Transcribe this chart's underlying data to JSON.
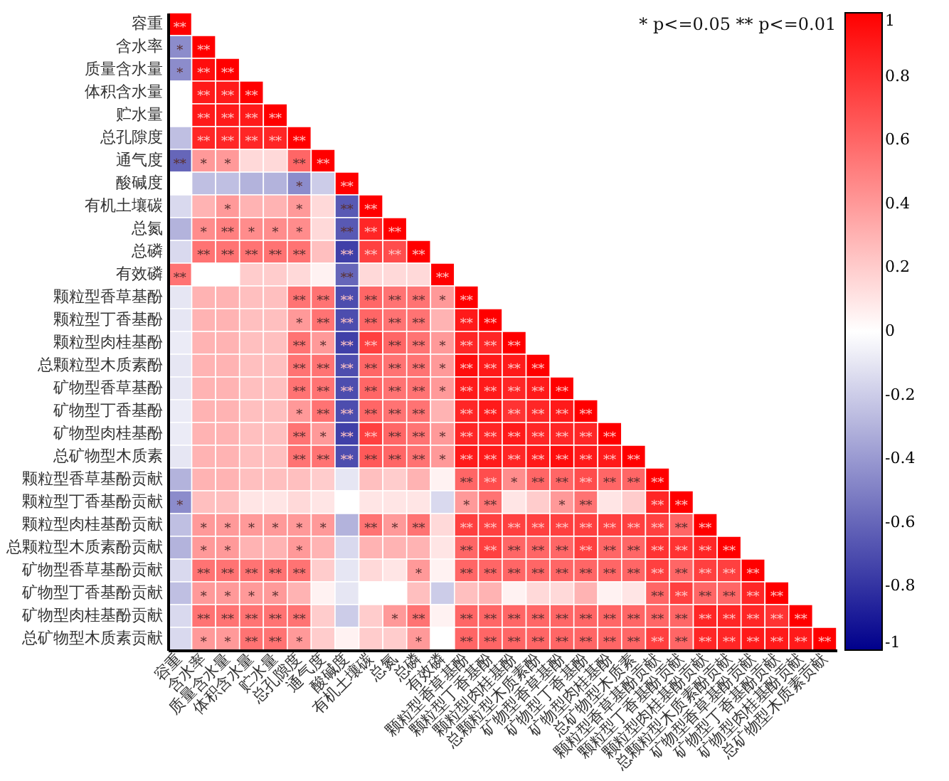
{
  "chart_data": {
    "type": "heatmap",
    "categories": [
      "容重",
      "含水率",
      "质量含水量",
      "体积含水量",
      "贮水量",
      "总孔隙度",
      "通气度",
      "酸碱度",
      "有机土壤碳",
      "总氮",
      "总磷",
      "有效磷",
      "颗粒型香草基酚",
      "颗粒型丁香基酚",
      "颗粒型肉桂基酚",
      "总颗粒型木质素酚",
      "矿物型香草基酚",
      "矿物型丁香基酚",
      "矿物型肉桂基酚",
      "总矿物型木质素",
      "颗粒型香草基酚贡献",
      "颗粒型丁香基酚贡献",
      "颗粒型肉桂基酚贡献",
      "总颗粒型木质素酚贡献",
      "矿物型香草基酚贡献",
      "矿物型丁香基酚贡献",
      "矿物型肉桂基酚贡献",
      "总矿物型木质素贡献"
    ],
    "y_categories": [
      "容重",
      "含水率",
      "质量含水量",
      "体积含水量",
      "贮水量",
      "总孔隙度",
      "通气度",
      "酸碱度",
      "有机土壤碳",
      "总氮",
      "总磷",
      "有效磷",
      "颗粒型香草基酚",
      "颗粒型丁香基酚",
      "颗粒型肉桂基酚",
      "总颗粒型木质素酚",
      "矿物型香草基酚",
      "矿物型丁香基酚",
      "矿物型肉桂基酚",
      "总矿物型木质素",
      "颗粒型香草基酚贡献",
      "颗粒型丁香基酚贡献",
      "颗粒型肉桂基酚贡献",
      "总颗粒型木质素酚贡献",
      "矿物型香草基酚贡献",
      "矿物型丁香基酚贡献",
      "矿物型肉桂基酚贡献",
      "总矿物型木质素贡献"
    ],
    "cells": [
      [
        1,
        null,
        null,
        null,
        null,
        null,
        null,
        null,
        null,
        null,
        null,
        null,
        null,
        null,
        null,
        null,
        null,
        null,
        null,
        null,
        null,
        null,
        null,
        null,
        null,
        null,
        null,
        null
      ],
      [
        -0.45,
        1,
        null,
        null,
        null,
        null,
        null,
        null,
        null,
        null,
        null,
        null,
        null,
        null,
        null,
        null,
        null,
        null,
        null,
        null,
        null,
        null,
        null,
        null,
        null,
        null,
        null,
        null
      ],
      [
        -0.45,
        0.95,
        1,
        null,
        null,
        null,
        null,
        null,
        null,
        null,
        null,
        null,
        null,
        null,
        null,
        null,
        null,
        null,
        null,
        null,
        null,
        null,
        null,
        null,
        null,
        null,
        null,
        null
      ],
      [
        0,
        0.9,
        0.9,
        1,
        null,
        null,
        null,
        null,
        null,
        null,
        null,
        null,
        null,
        null,
        null,
        null,
        null,
        null,
        null,
        null,
        null,
        null,
        null,
        null,
        null,
        null,
        null,
        null
      ],
      [
        0,
        0.9,
        0.9,
        0.9,
        1,
        null,
        null,
        null,
        null,
        null,
        null,
        null,
        null,
        null,
        null,
        null,
        null,
        null,
        null,
        null,
        null,
        null,
        null,
        null,
        null,
        null,
        null,
        null
      ],
      [
        -0.25,
        0.85,
        0.85,
        0.85,
        0.85,
        1,
        null,
        null,
        null,
        null,
        null,
        null,
        null,
        null,
        null,
        null,
        null,
        null,
        null,
        null,
        null,
        null,
        null,
        null,
        null,
        null,
        null,
        null
      ],
      [
        -0.6,
        0.4,
        0.4,
        0.15,
        0.15,
        0.6,
        1,
        null,
        null,
        null,
        null,
        null,
        null,
        null,
        null,
        null,
        null,
        null,
        null,
        null,
        null,
        null,
        null,
        null,
        null,
        null,
        null,
        null
      ],
      [
        0,
        -0.25,
        -0.25,
        -0.3,
        -0.3,
        -0.45,
        -0.2,
        1,
        null,
        null,
        null,
        null,
        null,
        null,
        null,
        null,
        null,
        null,
        null,
        null,
        null,
        null,
        null,
        null,
        null,
        null,
        null,
        null
      ],
      [
        -0.15,
        0.3,
        0.4,
        0.3,
        0.3,
        0.4,
        0.15,
        -0.65,
        1,
        null,
        null,
        null,
        null,
        null,
        null,
        null,
        null,
        null,
        null,
        null,
        null,
        null,
        null,
        null,
        null,
        null,
        null,
        null
      ],
      [
        -0.3,
        0.45,
        0.5,
        0.45,
        0.45,
        0.45,
        0.15,
        -0.65,
        0.85,
        1,
        null,
        null,
        null,
        null,
        null,
        null,
        null,
        null,
        null,
        null,
        null,
        null,
        null,
        null,
        null,
        null,
        null,
        null
      ],
      [
        -0.15,
        0.55,
        0.55,
        0.55,
        0.55,
        0.55,
        0.25,
        -0.75,
        0.75,
        0.7,
        1,
        null,
        null,
        null,
        null,
        null,
        null,
        null,
        null,
        null,
        null,
        null,
        null,
        null,
        null,
        null,
        null,
        null
      ],
      [
        0.55,
        0,
        0,
        0.2,
        0.2,
        0.15,
        0.05,
        -0.6,
        0.15,
        0.15,
        0.15,
        1,
        null,
        null,
        null,
        null,
        null,
        null,
        null,
        null,
        null,
        null,
        null,
        null,
        null,
        null,
        null,
        null
      ],
      [
        -0.1,
        0.3,
        0.3,
        0.25,
        0.25,
        0.55,
        0.55,
        -0.7,
        0.6,
        0.55,
        0.55,
        0.4,
        1,
        null,
        null,
        null,
        null,
        null,
        null,
        null,
        null,
        null,
        null,
        null,
        null,
        null,
        null,
        null
      ],
      [
        -0.1,
        0.3,
        0.3,
        0.25,
        0.25,
        0.4,
        0.55,
        -0.7,
        0.6,
        0.55,
        0.55,
        0.3,
        0.9,
        1,
        null,
        null,
        null,
        null,
        null,
        null,
        null,
        null,
        null,
        null,
        null,
        null,
        null,
        null
      ],
      [
        -0.08,
        0.3,
        0.3,
        0.25,
        0.25,
        0.55,
        0.4,
        -0.75,
        0.75,
        0.6,
        0.55,
        0.4,
        0.85,
        0.85,
        1,
        null,
        null,
        null,
        null,
        null,
        null,
        null,
        null,
        null,
        null,
        null,
        null,
        null
      ],
      [
        -0.1,
        0.3,
        0.3,
        0.25,
        0.25,
        0.55,
        0.55,
        -0.7,
        0.6,
        0.55,
        0.55,
        0.4,
        0.95,
        0.9,
        0.9,
        1,
        null,
        null,
        null,
        null,
        null,
        null,
        null,
        null,
        null,
        null,
        null,
        null
      ],
      [
        -0.1,
        0.3,
        0.3,
        0.25,
        0.25,
        0.55,
        0.55,
        -0.7,
        0.6,
        0.55,
        0.55,
        0.4,
        0.9,
        0.9,
        0.85,
        0.9,
        1,
        null,
        null,
        null,
        null,
        null,
        null,
        null,
        null,
        null,
        null,
        null
      ],
      [
        -0.08,
        0.3,
        0.3,
        0.25,
        0.25,
        0.4,
        0.55,
        -0.7,
        0.6,
        0.55,
        0.55,
        0.3,
        0.85,
        0.9,
        0.8,
        0.85,
        0.9,
        1,
        null,
        null,
        null,
        null,
        null,
        null,
        null,
        null,
        null,
        null
      ],
      [
        -0.08,
        0.3,
        0.3,
        0.25,
        0.25,
        0.55,
        0.4,
        -0.75,
        0.75,
        0.6,
        0.55,
        0.4,
        0.85,
        0.85,
        0.9,
        0.85,
        0.85,
        0.85,
        1,
        null,
        null,
        null,
        null,
        null,
        null,
        null,
        null,
        null
      ],
      [
        -0.1,
        0.3,
        0.3,
        0.25,
        0.25,
        0.55,
        0.55,
        -0.7,
        0.65,
        0.6,
        0.55,
        0.4,
        0.9,
        0.9,
        0.85,
        0.9,
        0.95,
        0.9,
        0.9,
        1,
        null,
        null,
        null,
        null,
        null,
        null,
        null,
        null
      ],
      [
        -0.3,
        0.3,
        0.3,
        0.25,
        0.25,
        0.25,
        0.2,
        -0.1,
        0.25,
        0.2,
        0.3,
        0.05,
        0.6,
        0.7,
        0.45,
        0.6,
        0.6,
        0.7,
        0.6,
        0.6,
        1,
        null,
        null,
        null,
        null,
        null,
        null,
        null
      ],
      [
        -0.45,
        0.25,
        0.25,
        0.1,
        0.1,
        0.15,
        0.1,
        0,
        0.1,
        0.1,
        0.1,
        -0.15,
        0.4,
        0.55,
        0.1,
        0.2,
        0.4,
        0.55,
        0.1,
        0.2,
        0.85,
        1,
        null,
        null,
        null,
        null,
        null,
        null
      ],
      [
        -0.25,
        0.4,
        0.4,
        0.4,
        0.4,
        0.4,
        0.4,
        -0.3,
        0.55,
        0.4,
        0.55,
        0.15,
        0.75,
        0.75,
        0.75,
        0.75,
        0.75,
        0.75,
        0.75,
        0.75,
        0.75,
        0.6,
        1,
        null,
        null,
        null,
        null,
        null
      ],
      [
        -0.3,
        0.4,
        0.4,
        0.3,
        0.3,
        0.4,
        0.3,
        -0.15,
        0.3,
        0.3,
        0.3,
        0.1,
        0.6,
        0.75,
        0.6,
        0.6,
        0.6,
        0.75,
        0.6,
        0.6,
        0.8,
        0.8,
        0.85,
        1,
        null,
        null,
        null,
        null
      ],
      [
        -0.15,
        0.55,
        0.55,
        0.55,
        0.55,
        0.55,
        0.2,
        -0.1,
        0.15,
        0.1,
        0.4,
        0.05,
        0.6,
        0.6,
        0.6,
        0.6,
        0.6,
        0.6,
        0.6,
        0.6,
        0.75,
        0.6,
        0.75,
        0.75,
        1,
        null,
        null,
        null
      ],
      [
        -0.25,
        0.4,
        0.4,
        0.4,
        0.4,
        0.3,
        0.05,
        -0.1,
        0,
        0,
        0.25,
        -0.2,
        0.25,
        0.3,
        0.05,
        0.15,
        0.15,
        0.3,
        0.05,
        0.1,
        0.6,
        0.75,
        0.6,
        0.6,
        0.85,
        1,
        null,
        null
      ],
      [
        -0.15,
        0.55,
        0.55,
        0.55,
        0.55,
        0.55,
        0.2,
        -0.2,
        0.2,
        0.4,
        0.55,
        0.05,
        0.6,
        0.6,
        0.6,
        0.6,
        0.6,
        0.6,
        0.6,
        0.6,
        0.6,
        0.6,
        0.85,
        0.85,
        0.85,
        0.8,
        1,
        null
      ],
      [
        -0.15,
        0.4,
        0.4,
        0.55,
        0.55,
        0.4,
        0.2,
        0.05,
        0.2,
        0.2,
        0.4,
        0,
        0.6,
        0.6,
        0.6,
        0.6,
        0.6,
        0.6,
        0.6,
        0.6,
        0.75,
        0.6,
        0.85,
        0.85,
        0.9,
        0.9,
        0.9,
        1
      ]
    ],
    "cell_labels": [
      [
        "**",
        null,
        null,
        null,
        null,
        null,
        null,
        null,
        null,
        null,
        null,
        null,
        null,
        null,
        null,
        null,
        null,
        null,
        null,
        null,
        null,
        null,
        null,
        null,
        null,
        null,
        null,
        null
      ],
      [
        "*",
        "**",
        null,
        null,
        null,
        null,
        null,
        null,
        null,
        null,
        null,
        null,
        null,
        null,
        null,
        null,
        null,
        null,
        null,
        null,
        null,
        null,
        null,
        null,
        null,
        null,
        null,
        null
      ],
      [
        "*",
        "**",
        "**",
        null,
        null,
        null,
        null,
        null,
        null,
        null,
        null,
        null,
        null,
        null,
        null,
        null,
        null,
        null,
        null,
        null,
        null,
        null,
        null,
        null,
        null,
        null,
        null,
        null
      ],
      [
        null,
        "**",
        "**",
        "**",
        null,
        null,
        null,
        null,
        null,
        null,
        null,
        null,
        null,
        null,
        null,
        null,
        null,
        null,
        null,
        null,
        null,
        null,
        null,
        null,
        null,
        null,
        null,
        null
      ],
      [
        null,
        "**",
        "**",
        "**",
        "**",
        null,
        null,
        null,
        null,
        null,
        null,
        null,
        null,
        null,
        null,
        null,
        null,
        null,
        null,
        null,
        null,
        null,
        null,
        null,
        null,
        null,
        null,
        null
      ],
      [
        null,
        "**",
        "**",
        "**",
        "**",
        "**",
        null,
        null,
        null,
        null,
        null,
        null,
        null,
        null,
        null,
        null,
        null,
        null,
        null,
        null,
        null,
        null,
        null,
        null,
        null,
        null,
        null,
        null
      ],
      [
        "**",
        "*",
        "*",
        null,
        null,
        "**",
        "**",
        null,
        null,
        null,
        null,
        null,
        null,
        null,
        null,
        null,
        null,
        null,
        null,
        null,
        null,
        null,
        null,
        null,
        null,
        null,
        null,
        null
      ],
      [
        null,
        null,
        null,
        null,
        null,
        "*",
        null,
        "**",
        null,
        null,
        null,
        null,
        null,
        null,
        null,
        null,
        null,
        null,
        null,
        null,
        null,
        null,
        null,
        null,
        null,
        null,
        null,
        null
      ],
      [
        null,
        null,
        "*",
        null,
        null,
        "*",
        null,
        "**",
        "**",
        null,
        null,
        null,
        null,
        null,
        null,
        null,
        null,
        null,
        null,
        null,
        null,
        null,
        null,
        null,
        null,
        null,
        null,
        null
      ],
      [
        null,
        "*",
        "**",
        "*",
        "*",
        "*",
        null,
        "**",
        "**",
        "**",
        null,
        null,
        null,
        null,
        null,
        null,
        null,
        null,
        null,
        null,
        null,
        null,
        null,
        null,
        null,
        null,
        null,
        null
      ],
      [
        null,
        "**",
        "**",
        "**",
        "**",
        "**",
        null,
        "**",
        "**",
        "**",
        "**",
        null,
        null,
        null,
        null,
        null,
        null,
        null,
        null,
        null,
        null,
        null,
        null,
        null,
        null,
        null,
        null,
        null
      ],
      [
        "**",
        null,
        null,
        null,
        null,
        null,
        null,
        "**",
        null,
        null,
        null,
        "**",
        null,
        null,
        null,
        null,
        null,
        null,
        null,
        null,
        null,
        null,
        null,
        null,
        null,
        null,
        null,
        null
      ],
      [
        null,
        null,
        null,
        null,
        null,
        "**",
        "**",
        "**",
        "**",
        "**",
        "**",
        "*",
        "**",
        null,
        null,
        null,
        null,
        null,
        null,
        null,
        null,
        null,
        null,
        null,
        null,
        null,
        null,
        null
      ],
      [
        null,
        null,
        null,
        null,
        null,
        "*",
        "**",
        "**",
        "**",
        "**",
        "**",
        null,
        "**",
        "**",
        null,
        null,
        null,
        null,
        null,
        null,
        null,
        null,
        null,
        null,
        null,
        null,
        null,
        null
      ],
      [
        null,
        null,
        null,
        null,
        null,
        "**",
        "*",
        "**",
        "**",
        "**",
        "**",
        "*",
        "**",
        "**",
        "**",
        null,
        null,
        null,
        null,
        null,
        null,
        null,
        null,
        null,
        null,
        null,
        null,
        null
      ],
      [
        null,
        null,
        null,
        null,
        null,
        "**",
        "**",
        "**",
        "**",
        "**",
        "**",
        "*",
        "**",
        "**",
        "**",
        "**",
        null,
        null,
        null,
        null,
        null,
        null,
        null,
        null,
        null,
        null,
        null,
        null
      ],
      [
        null,
        null,
        null,
        null,
        null,
        "**",
        "**",
        "**",
        "**",
        "**",
        "**",
        "*",
        "**",
        "**",
        "**",
        "**",
        "**",
        null,
        null,
        null,
        null,
        null,
        null,
        null,
        null,
        null,
        null,
        null
      ],
      [
        null,
        null,
        null,
        null,
        null,
        "*",
        "**",
        "**",
        "**",
        "**",
        "**",
        null,
        "**",
        "**",
        "**",
        "**",
        "**",
        "**",
        null,
        null,
        null,
        null,
        null,
        null,
        null,
        null,
        null,
        null
      ],
      [
        null,
        null,
        null,
        null,
        null,
        "**",
        "*",
        "**",
        "**",
        "**",
        "**",
        "*",
        "**",
        "**",
        "**",
        "**",
        "**",
        "**",
        "**",
        null,
        null,
        null,
        null,
        null,
        null,
        null,
        null,
        null
      ],
      [
        null,
        null,
        null,
        null,
        null,
        "**",
        "**",
        "**",
        "**",
        "**",
        "**",
        "*",
        "**",
        "**",
        "**",
        "**",
        "**",
        "**",
        "**",
        "**",
        null,
        null,
        null,
        null,
        null,
        null,
        null,
        null
      ],
      [
        null,
        null,
        null,
        null,
        null,
        null,
        null,
        null,
        null,
        null,
        null,
        null,
        "**",
        "**",
        "*",
        "**",
        "**",
        "**",
        "**",
        "**",
        "**",
        null,
        null,
        null,
        null,
        null,
        null,
        null
      ],
      [
        "*",
        null,
        null,
        null,
        null,
        null,
        null,
        null,
        null,
        null,
        null,
        null,
        "*",
        "**",
        null,
        null,
        "*",
        "**",
        null,
        null,
        "**",
        "**",
        null,
        null,
        null,
        null,
        null,
        null
      ],
      [
        null,
        "*",
        "*",
        "*",
        "*",
        "*",
        "*",
        null,
        "**",
        "*",
        "**",
        null,
        "**",
        "**",
        "**",
        "**",
        "**",
        "**",
        "**",
        "**",
        "**",
        "**",
        "**",
        null,
        null,
        null,
        null,
        null
      ],
      [
        null,
        "*",
        "*",
        null,
        null,
        "*",
        null,
        null,
        null,
        null,
        null,
        null,
        "**",
        "**",
        "**",
        "**",
        "**",
        "**",
        "**",
        "**",
        "**",
        "**",
        "**",
        "**",
        null,
        null,
        null,
        null
      ],
      [
        null,
        "**",
        "**",
        "**",
        "**",
        "**",
        null,
        null,
        null,
        null,
        "*",
        null,
        "**",
        "**",
        "**",
        "**",
        "**",
        "**",
        "**",
        "**",
        "**",
        "**",
        "**",
        "**",
        "**",
        null,
        null,
        null
      ],
      [
        null,
        "*",
        "*",
        "*",
        "*",
        null,
        null,
        null,
        null,
        null,
        null,
        null,
        null,
        null,
        null,
        null,
        null,
        null,
        null,
        null,
        "**",
        "**",
        "**",
        "**",
        "**",
        "**",
        null,
        null
      ],
      [
        null,
        "**",
        "**",
        "**",
        "**",
        "**",
        null,
        null,
        null,
        "*",
        "**",
        null,
        "**",
        "**",
        "**",
        "**",
        "**",
        "**",
        "**",
        "**",
        "**",
        "**",
        "**",
        "**",
        "**",
        "**",
        "**",
        null
      ],
      [
        null,
        "*",
        "*",
        "**",
        "**",
        "*",
        null,
        null,
        null,
        null,
        "*",
        null,
        "**",
        "**",
        "**",
        "**",
        "**",
        "**",
        "**",
        "**",
        "**",
        "**",
        "**",
        "**",
        "**",
        "**",
        "**",
        "**"
      ]
    ],
    "clim": [
      -1,
      1
    ],
    "cticks": [
      -1,
      -0.8,
      -0.6,
      -0.4,
      -0.2,
      0,
      0.2,
      0.4,
      0.6,
      0.8,
      1
    ],
    "annotations": [
      "* p<=0.05  ** p<=0.01"
    ]
  }
}
